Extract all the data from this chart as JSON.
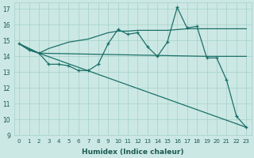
{
  "xlabel": "Humidex (Indice chaleur)",
  "bg_color": "#cce8e4",
  "grid_color": "#aad4cc",
  "line_color": "#1a7068",
  "xlim": [
    -0.5,
    23.5
  ],
  "ylim": [
    9,
    17.4
  ],
  "yticks": [
    9,
    10,
    11,
    12,
    13,
    14,
    15,
    16,
    17
  ],
  "xticks": [
    0,
    1,
    2,
    3,
    4,
    5,
    6,
    7,
    8,
    9,
    10,
    11,
    12,
    13,
    14,
    15,
    16,
    17,
    18,
    19,
    20,
    21,
    22,
    23
  ],
  "line1_x": [
    0,
    1,
    2,
    3,
    4,
    5,
    6,
    7,
    8,
    9,
    10,
    11,
    12,
    13,
    14,
    15,
    16,
    17,
    18,
    19,
    20,
    21,
    22,
    23
  ],
  "line1_y": [
    14.8,
    14.4,
    14.2,
    13.5,
    13.5,
    13.4,
    13.1,
    13.1,
    13.5,
    14.8,
    15.7,
    15.4,
    15.5,
    14.6,
    14.0,
    14.9,
    17.1,
    15.8,
    15.9,
    13.9,
    13.9,
    12.5,
    10.2,
    9.5
  ],
  "line2_x": [
    0,
    2,
    19,
    20,
    23
  ],
  "line2_y": [
    14.8,
    14.2,
    14.0,
    14.0,
    14.0
  ],
  "line3_x": [
    0,
    2,
    23
  ],
  "line3_y": [
    14.8,
    14.2,
    9.5
  ],
  "line_smooth_x": [
    0,
    1,
    2,
    3,
    4,
    5,
    6,
    7,
    8,
    9,
    10,
    11,
    12,
    13,
    14,
    15,
    16,
    17,
    18,
    19,
    20,
    21,
    22,
    23
  ],
  "line_smooth_y": [
    14.8,
    14.4,
    14.2,
    14.5,
    14.7,
    14.9,
    15.0,
    15.1,
    15.3,
    15.5,
    15.6,
    15.6,
    15.65,
    15.65,
    15.65,
    15.65,
    15.7,
    15.75,
    15.75,
    15.75,
    15.75,
    15.75,
    15.75,
    15.75
  ]
}
